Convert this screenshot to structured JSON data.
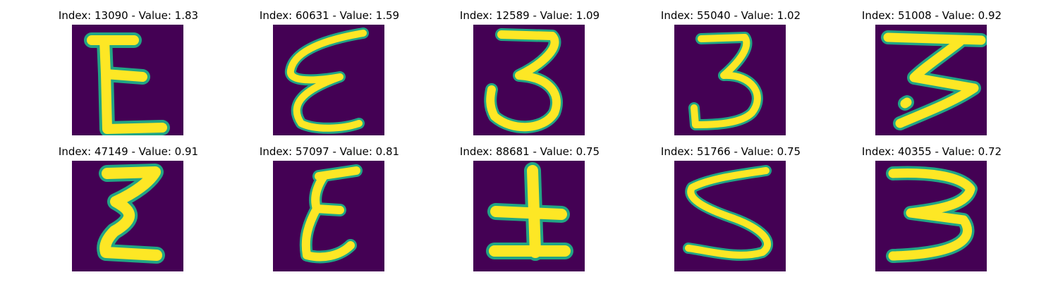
{
  "colors": {
    "background": "#440154",
    "stroke_core": "#fde725",
    "stroke_edge": "#21a585"
  },
  "panels": [
    {
      "title": "Index: 13090 - Value: 1.83",
      "glyph": "E"
    },
    {
      "title": "Index: 60631 - Value: 1.59",
      "glyph": "epsilon"
    },
    {
      "title": "Index: 12589 - Value: 1.09",
      "glyph": "3"
    },
    {
      "title": "Index: 55040 - Value: 1.02",
      "glyph": "3"
    },
    {
      "title": "Index: 51008 - Value: 0.92",
      "glyph": "3-bold"
    },
    {
      "title": "Index: 47149 - Value: 0.91",
      "glyph": "Sigma"
    },
    {
      "title": "Index: 57097 - Value: 0.81",
      "glyph": "E"
    },
    {
      "title": "Index: 88681 - Value: 0.75",
      "glyph": "tu"
    },
    {
      "title": "Index: 51766 - Value: 0.75",
      "glyph": "S"
    },
    {
      "title": "Index: 40355 - Value: 0.72",
      "glyph": "3"
    }
  ]
}
